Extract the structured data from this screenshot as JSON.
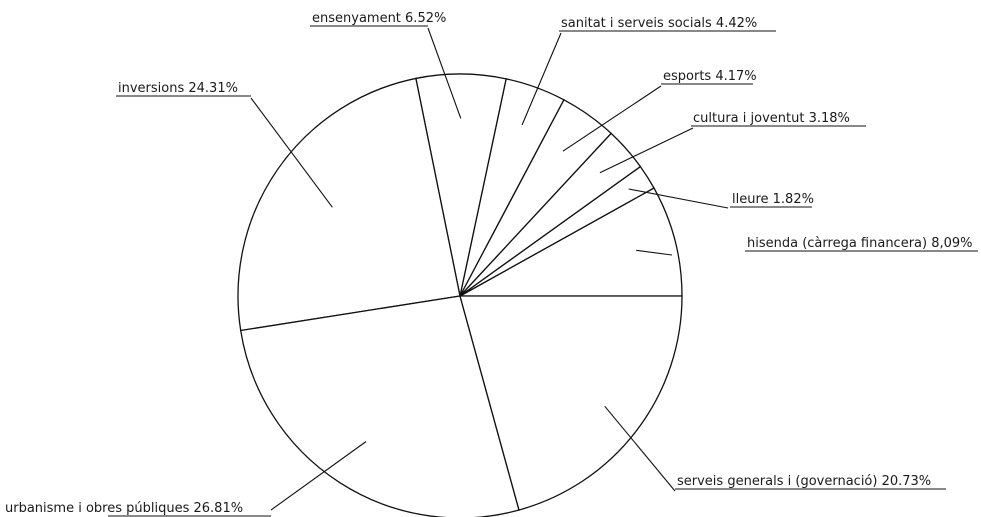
{
  "chart_data": {
    "type": "pie",
    "title": "",
    "slices": [
      {
        "label": "hisenda (càrrega financera) 8,09%",
        "value": 8.09
      },
      {
        "label": "lleure 1.82%",
        "value": 1.82
      },
      {
        "label": "cultura i joventut 3.18%",
        "value": 3.18
      },
      {
        "label": "esports 4.17%",
        "value": 4.17
      },
      {
        "label": "sanitat i serveis socials 4.42%",
        "value": 4.42
      },
      {
        "label": "ensenyament 6.52%",
        "value": 6.52
      },
      {
        "label": "inversions 24.31%",
        "value": 24.31
      },
      {
        "label": "urbanisme i obres públiques 26.81%",
        "value": 26.81
      },
      {
        "label": "serveis generals i (governació) 20.73%",
        "value": 20.73
      }
    ]
  }
}
